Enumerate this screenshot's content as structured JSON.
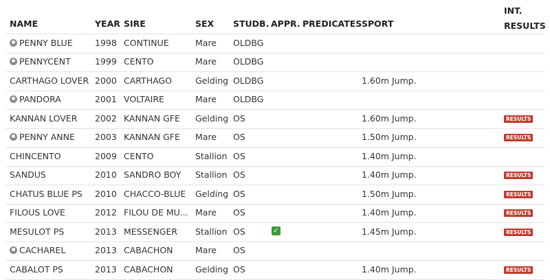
{
  "header": [
    "NAME",
    "YEAR",
    "SIRE",
    "SEX",
    "STUDB.",
    "APPR.",
    "PREDICATES",
    "SPORT",
    "INT. RESULTS"
  ],
  "rows": [
    {
      "icon": true,
      "name": "PENNY BLUE",
      "year": 1998,
      "sire": "CONTINUE",
      "sex": "Mare",
      "studbook": "OLDBG"
    },
    {
      "icon": true,
      "name": "PENNYCENT",
      "year": 1999,
      "sire": "CENTO",
      "sex": "Mare",
      "studbook": "OLDBG"
    },
    {
      "name": "CARTHAGO LOVER",
      "year": 2000,
      "sire": "CARTHAGO",
      "sex": "Gelding",
      "studbook": "OLDBG",
      "sport": "1.60m Jump."
    },
    {
      "icon": true,
      "name": "PANDORA",
      "year": 2001,
      "sire": "VOLTAIRE",
      "sex": "Mare",
      "studbook": "OLDBG"
    },
    {
      "name": "KANNAN LOVER",
      "year": 2002,
      "sire": "KANNAN GFE",
      "sex": "Gelding",
      "studbook": "OS",
      "sport": "1.60m Jump.",
      "results": "RESULTS"
    },
    {
      "icon": true,
      "name": "PENNY ANNE",
      "year": 2003,
      "sire": "KANNAN GFE",
      "sex": "Mare",
      "studbook": "OS",
      "sport": "1.50m Jump.",
      "results": "RESULTS"
    },
    {
      "name": "CHINCENTO",
      "year": 2009,
      "sire": "CENTO",
      "sex": "Stallion",
      "studbook": "OS",
      "sport": "1.40m Jump."
    },
    {
      "name": "SANDUS",
      "year": 2010,
      "sire": "SANDRO BOY",
      "sex": "Stallion",
      "studbook": "OS",
      "sport": "1.40m Jump.",
      "results": "RESULTS"
    },
    {
      "name": "CHATUS BLUE PS",
      "year": 2010,
      "sire": "CHACCO-BLUE",
      "sex": "Gelding",
      "studbook": "OS",
      "sport": "1.50m Jump.",
      "results": "RESULTS"
    },
    {
      "name": "FILOUS LOVE",
      "year": 2012,
      "sire": "FILOU DE MU...",
      "sex": "Mare",
      "studbook": "OS",
      "sport": "1.40m Jump.",
      "results": "RESULTS"
    },
    {
      "name": "MESULOT PS",
      "year": 2013,
      "sire": "MESSENGER",
      "sex": "Stallion",
      "studbook": "OS",
      "approved": true,
      "sport": "1.45m Jump.",
      "results": "RESULTS"
    },
    {
      "icon": true,
      "name": "CACHAREL",
      "year": 2013,
      "sire": "CABACHON",
      "sex": "Mare",
      "studbook": "OS"
    },
    {
      "name": "CABALOT PS",
      "year": 2013,
      "sire": "CABACHON",
      "sex": "Gelding",
      "studbook": "OS",
      "sport": "1.40m Jump.",
      "results": "RESULTS"
    }
  ]
}
